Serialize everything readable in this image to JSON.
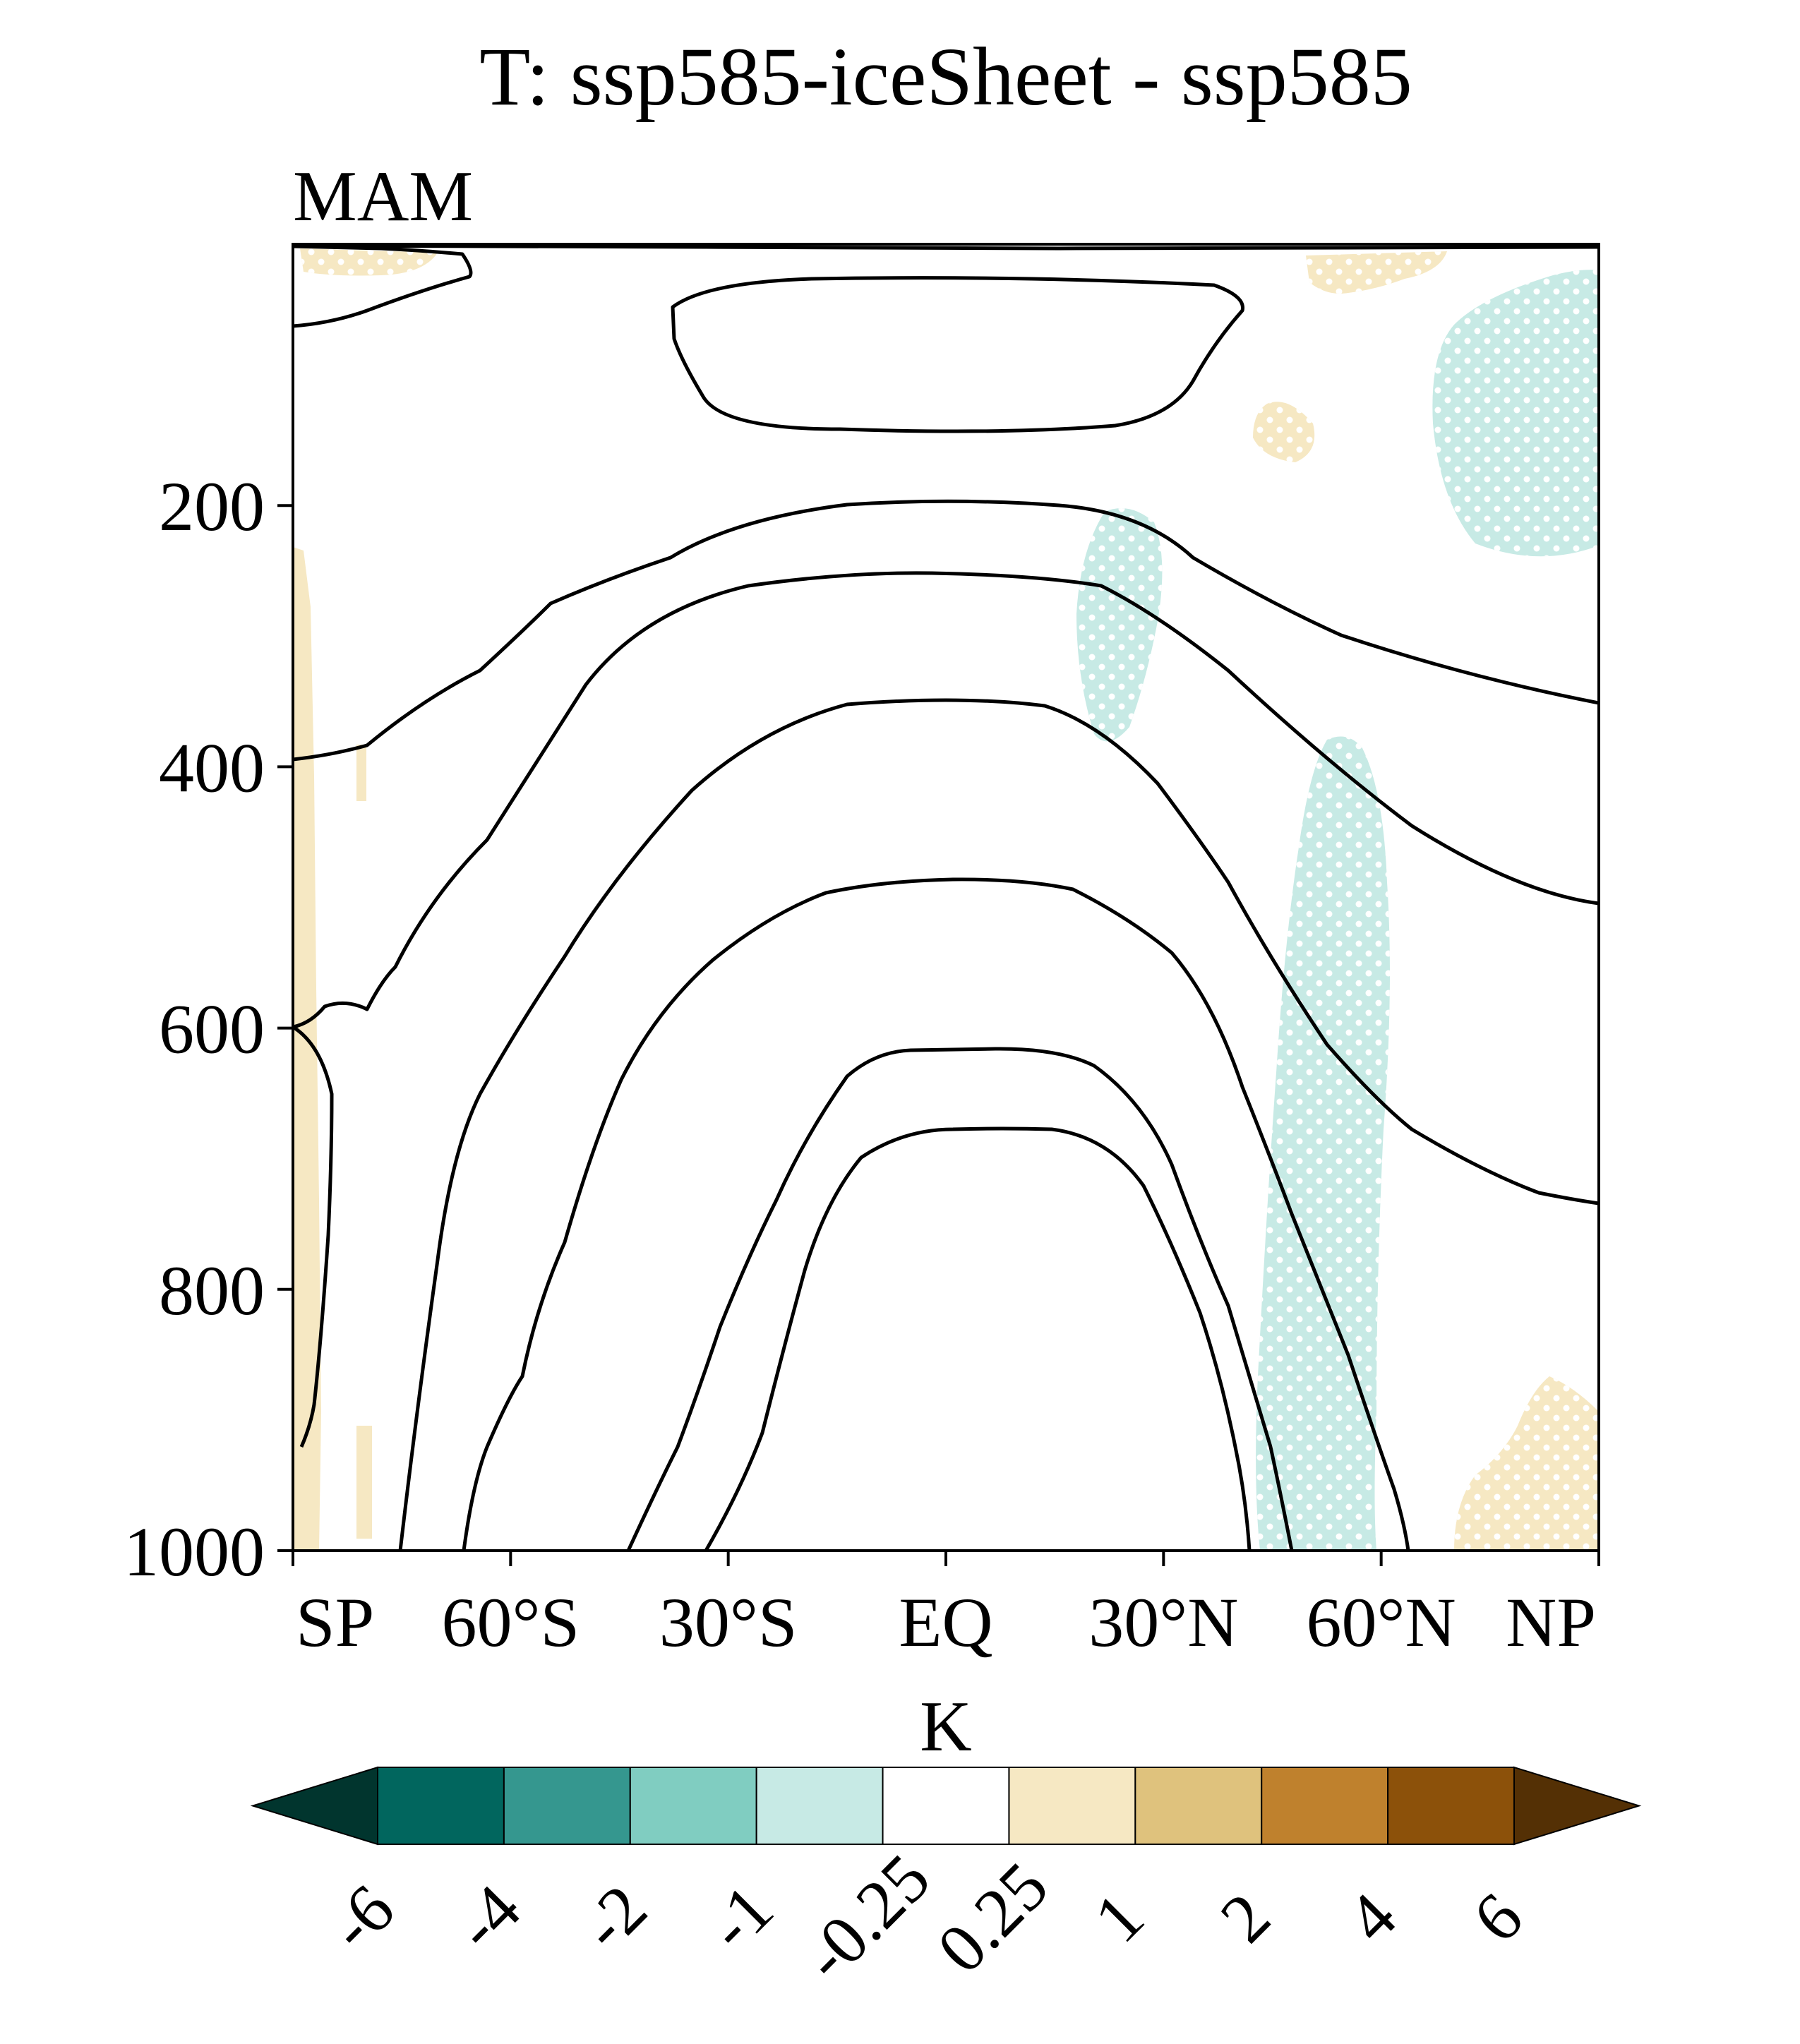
{
  "title": "T: ssp585-iceSheet - ssp585",
  "season": "MAM",
  "colorbar_unit": "K",
  "chart_data": {
    "type": "heatmap",
    "title": "T: ssp585-iceSheet - ssp585",
    "subtitle": "MAM",
    "x": {
      "ticks": [
        -90,
        -60,
        -30,
        0,
        30,
        60,
        90
      ],
      "tick_labels": [
        "SP",
        "60°S",
        "30°S",
        "EQ",
        "30°N",
        "60°N",
        "NP"
      ],
      "range": [
        -90,
        90
      ]
    },
    "y": {
      "ticks": [
        200,
        400,
        600,
        800,
        1000
      ],
      "tick_labels": [
        "200",
        "400",
        "600",
        "800",
        "1000"
      ],
      "range": [
        1000,
        0
      ],
      "inverted": true
    },
    "colorbar": {
      "unit": "K",
      "levels": [
        "-6",
        "-4",
        "-2",
        "-1",
        "-0.25",
        "0.25",
        "1",
        "2",
        "4",
        "6"
      ],
      "colors": [
        "#01352e",
        "#01665e",
        "#35978f",
        "#80cdc1",
        "#c7eae5",
        "#ffffff",
        "#f6e8c3",
        "#dfc27d",
        "#bf812d",
        "#8c510a",
        "#543005"
      ],
      "extend": "both"
    },
    "shaded_regions": [
      {
        "fill": "#f6e8c3",
        "stippled": true,
        "lat": [
          -90,
          -66
        ],
        "lev": [
          10,
          25
        ]
      },
      {
        "fill": "#f6e8c3",
        "stippled": true,
        "lat": [
          50,
          84
        ],
        "lev": [
          5,
          40
        ]
      },
      {
        "fill": "#c7eae5",
        "stippled": true,
        "lat": [
          70,
          90
        ],
        "lev": [
          20,
          245
        ]
      },
      {
        "fill": "#f6e8c3",
        "stippled": true,
        "lat": [
          42,
          50
        ],
        "lev": [
          120,
          170
        ]
      },
      {
        "fill": "#c7eae5",
        "stippled": true,
        "lat": [
          19,
          31
        ],
        "lev": [
          205,
          395
        ]
      },
      {
        "fill": "#c7eae5",
        "stippled": true,
        "lat": [
          43,
          61
        ],
        "lev": [
          380,
          1000
        ]
      },
      {
        "fill": "#f6e8c3",
        "stippled": true,
        "lat": [
          69,
          90
        ],
        "lev": [
          865,
          1000
        ]
      },
      {
        "fill": "#f6e8c3",
        "stippled": true,
        "lat": [
          -90,
          -86
        ],
        "lev": [
          230,
          1000
        ]
      }
    ],
    "contour_lines": 8,
    "grid": false
  }
}
